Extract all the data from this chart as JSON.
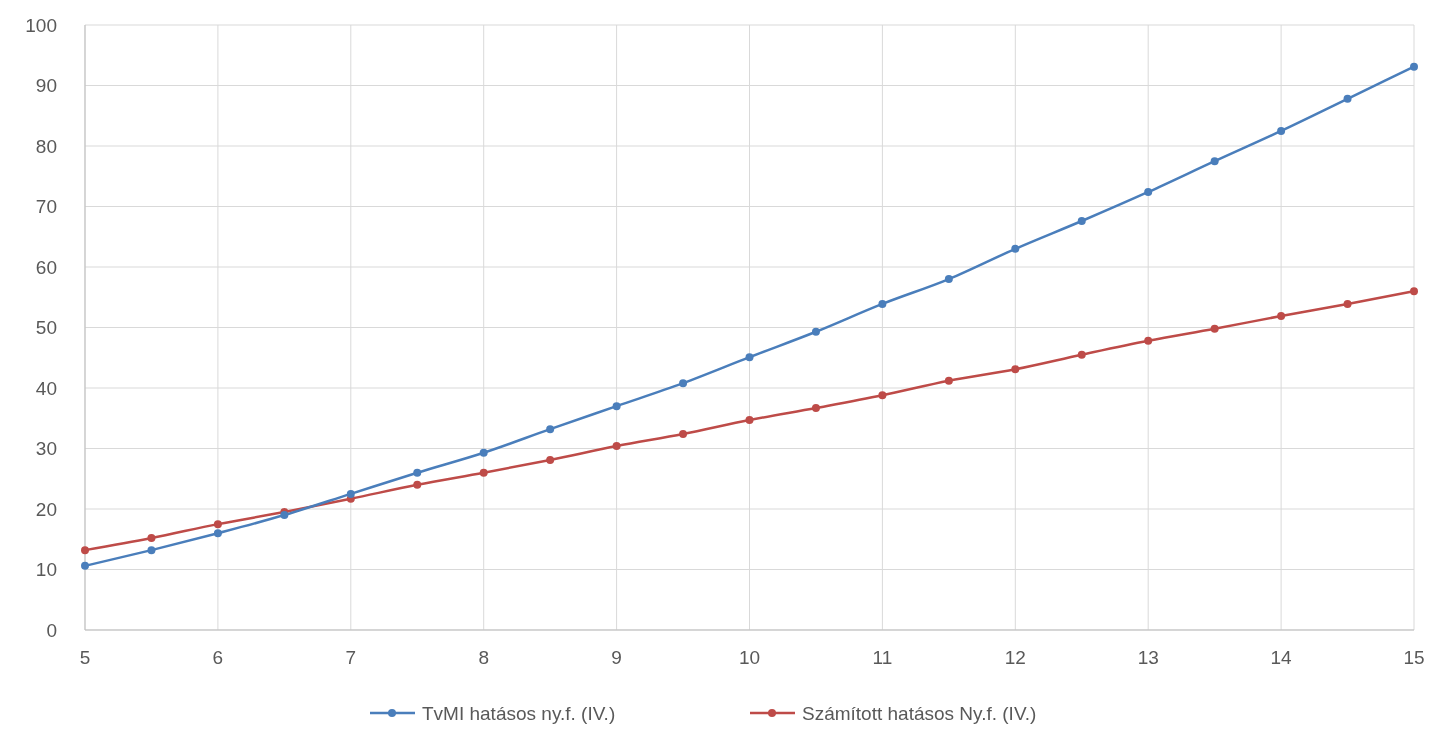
{
  "chart_data": {
    "type": "line",
    "x": [
      5,
      5.5,
      6,
      6.5,
      7,
      7.5,
      8,
      8.5,
      9,
      9.5,
      10,
      10.5,
      11,
      11.5,
      12,
      12.5,
      13,
      13.5,
      14,
      14.5,
      15
    ],
    "series": [
      {
        "name": "TvMI hatásos ny.f. (IV.)",
        "color": "#4a7ebb",
        "values": [
          10.6,
          13.2,
          16.0,
          19.0,
          22.5,
          26.0,
          29.3,
          33.2,
          37.0,
          40.8,
          45.1,
          49.3,
          53.9,
          58.0,
          63.0,
          67.6,
          72.4,
          77.5,
          82.5,
          87.8,
          93.1
        ]
      },
      {
        "name": "Számított hatásos Ny.f. (IV.)",
        "color": "#be4b48",
        "values": [
          13.2,
          15.2,
          17.5,
          19.5,
          21.7,
          24.0,
          26.0,
          28.1,
          30.4,
          32.4,
          34.7,
          36.7,
          38.8,
          41.2,
          43.1,
          45.5,
          47.8,
          49.8,
          51.9,
          53.9,
          56.0
        ]
      }
    ],
    "xlim": [
      5,
      15
    ],
    "xticks": [
      5,
      6,
      7,
      8,
      9,
      10,
      11,
      12,
      13,
      14,
      15
    ],
    "ylim": [
      0,
      100
    ],
    "yticks": [
      0,
      10,
      20,
      30,
      40,
      50,
      60,
      70,
      80,
      90,
      100
    ],
    "grid": true,
    "legend": "bottom",
    "marker": "circle",
    "line_style": "solid"
  }
}
